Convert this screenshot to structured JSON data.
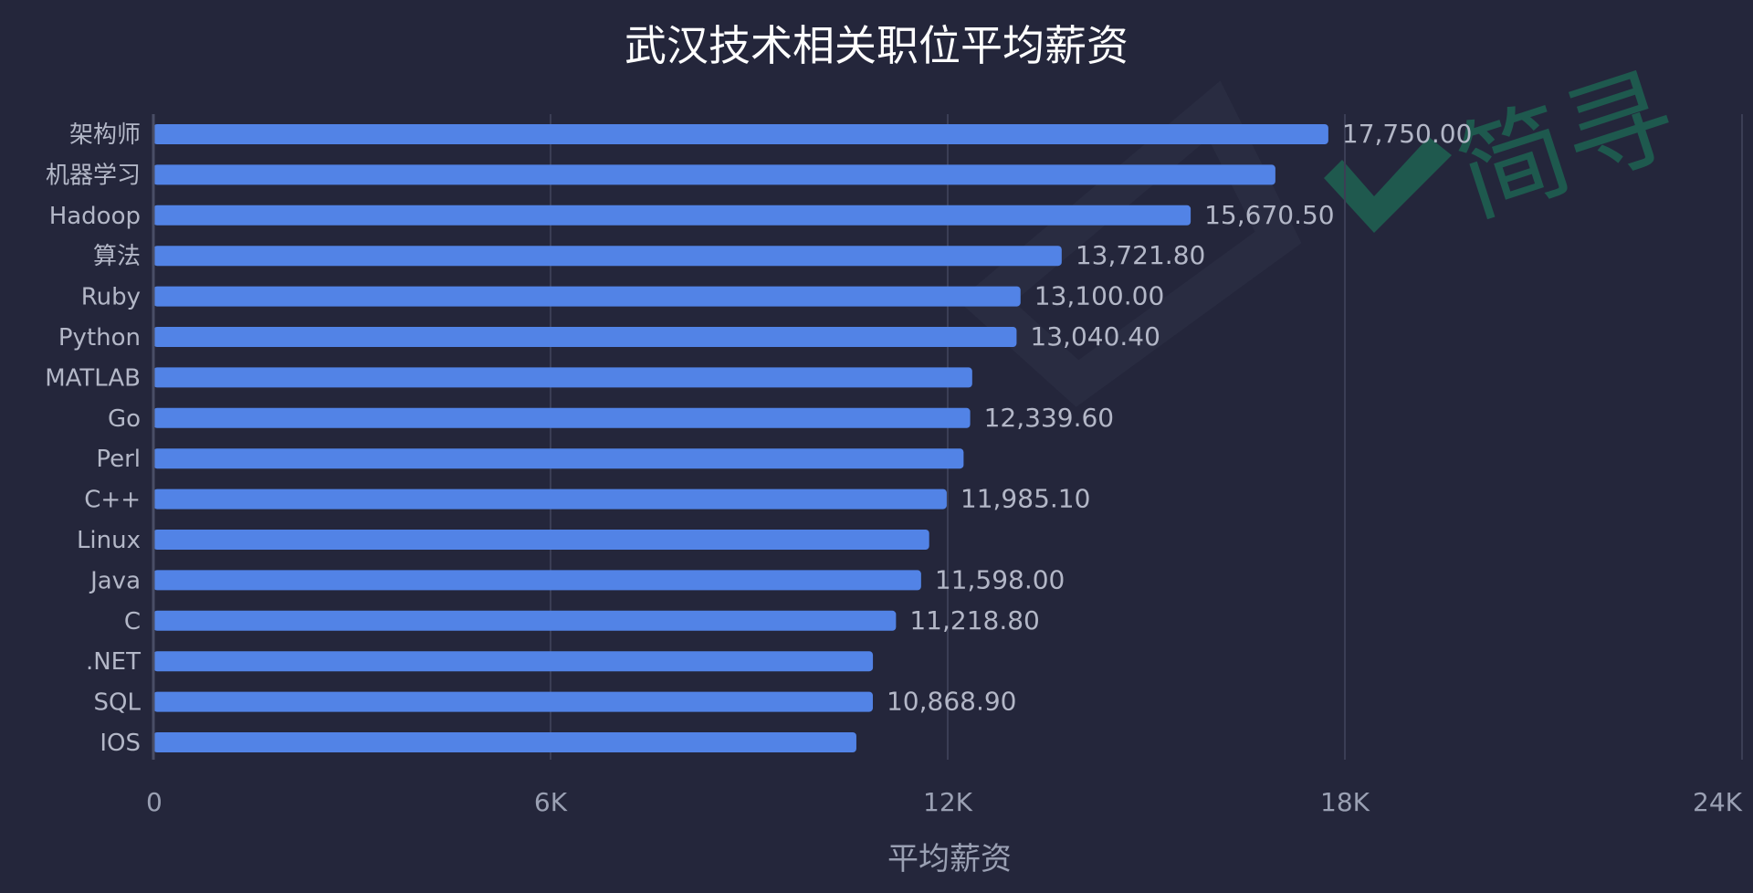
{
  "chart_data": {
    "type": "bar",
    "orientation": "horizontal",
    "title": "武汉技术相关职位平均薪资",
    "xlabel": "平均薪资",
    "ylabel": "",
    "xlim": [
      0,
      24000
    ],
    "x_ticks": [
      0,
      6000,
      12000,
      18000,
      24000
    ],
    "x_tick_labels": [
      "0",
      "6K",
      "12K",
      "18K",
      "24K"
    ],
    "grid": true,
    "bar_color": "#5283e6",
    "categories": [
      "架构师",
      "机器学习",
      "Hadoop",
      "算法",
      "Ruby",
      "Python",
      "MATLAB",
      "Go",
      "Perl",
      "C++",
      "Linux",
      "Java",
      "C",
      ".NET",
      "SQL",
      "IOS"
    ],
    "values": [
      17750.0,
      16950.0,
      15670.5,
      13721.8,
      13100.0,
      13040.4,
      12370.0,
      12339.6,
      12240.0,
      11985.1,
      11720.0,
      11598.0,
      11218.8,
      10870.0,
      10868.9,
      10620.0
    ],
    "data_labels": [
      "17,750.00",
      "",
      "15,670.50",
      "13,721.80",
      "13,100.00",
      "13,040.40",
      "",
      "12,339.60",
      "",
      "11,985.10",
      "",
      "11,598.00",
      "11,218.80",
      "",
      "10,868.90",
      ""
    ]
  },
  "watermark": {
    "text": "简寻",
    "color": "#1d6b55"
  }
}
